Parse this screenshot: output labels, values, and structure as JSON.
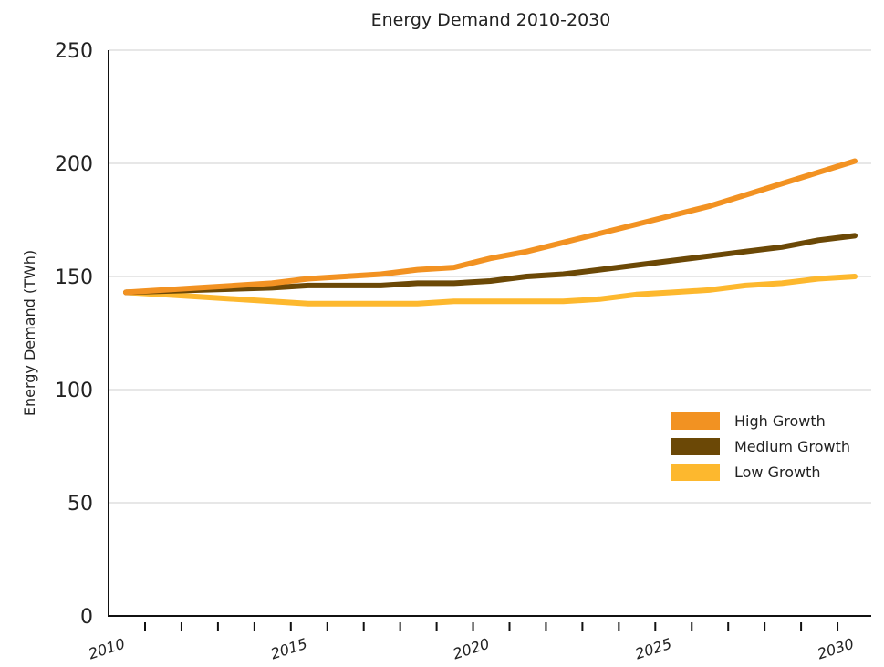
{
  "chart_data": {
    "type": "line",
    "title": "Energy Demand 2010-2030",
    "xlabel": "",
    "ylabel": "Energy Demand (TWh)",
    "x": [
      2010,
      2011,
      2012,
      2013,
      2014,
      2015,
      2016,
      2017,
      2018,
      2019,
      2020,
      2021,
      2022,
      2023,
      2024,
      2025,
      2026,
      2027,
      2028,
      2029,
      2030
    ],
    "xticks": [
      2010,
      2015,
      2020,
      2025,
      2030
    ],
    "yticks": [
      0,
      50,
      100,
      150,
      200,
      250
    ],
    "ylim": [
      0,
      250
    ],
    "grid": true,
    "legend_position": "right",
    "series": [
      {
        "name": "High Growth",
        "color": "#f29222",
        "values": [
          143,
          144,
          145,
          146,
          147,
          149,
          150,
          151,
          153,
          154,
          158,
          161,
          165,
          169,
          173,
          177,
          181,
          186,
          191,
          196,
          201
        ]
      },
      {
        "name": "Medium Growth",
        "color": "#6b4806",
        "values": [
          143,
          143.5,
          144,
          144.5,
          145,
          146,
          146,
          146,
          147,
          147,
          148,
          150,
          151,
          153,
          155,
          157,
          159,
          161,
          163,
          166,
          168
        ]
      },
      {
        "name": "Low Growth",
        "color": "#fdb82e",
        "values": [
          143,
          142,
          141,
          140,
          139,
          138,
          138,
          138,
          138,
          139,
          139,
          139,
          139,
          140,
          142,
          143,
          144,
          146,
          147,
          149,
          150
        ]
      }
    ]
  }
}
